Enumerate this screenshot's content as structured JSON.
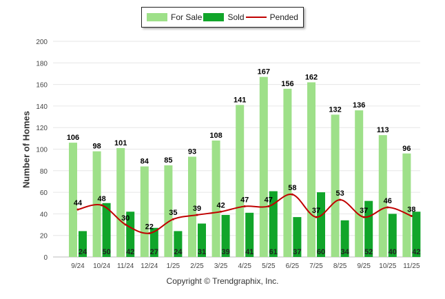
{
  "chart_data": {
    "type": "bar",
    "categories": [
      "9/24",
      "10/24",
      "11/24",
      "12/24",
      "1/25",
      "2/25",
      "3/25",
      "4/25",
      "5/25",
      "6/25",
      "7/25",
      "8/25",
      "9/25",
      "10/25",
      "11/25"
    ],
    "series": [
      {
        "name": "For Sale",
        "kind": "bar",
        "color": "#9ee089",
        "values": [
          106,
          98,
          101,
          84,
          85,
          93,
          108,
          141,
          167,
          156,
          162,
          132,
          136,
          113,
          96
        ]
      },
      {
        "name": "Sold",
        "kind": "bar",
        "color": "#11a52a",
        "values": [
          24,
          50,
          42,
          27,
          24,
          31,
          39,
          41,
          61,
          37,
          60,
          34,
          52,
          40,
          42
        ]
      },
      {
        "name": "Pended",
        "kind": "line",
        "color": "#c00000",
        "values": [
          44,
          48,
          30,
          22,
          35,
          39,
          42,
          47,
          47,
          58,
          37,
          53,
          37,
          46,
          38
        ]
      }
    ],
    "ylabel": "Number of Homes",
    "ylim": [
      0,
      200
    ],
    "yticks": [
      0,
      20,
      40,
      60,
      80,
      100,
      120,
      140,
      160,
      180,
      200
    ],
    "grid": true,
    "legend_position": "top-center"
  },
  "copyright": "Copyright © Trendgraphix, Inc."
}
